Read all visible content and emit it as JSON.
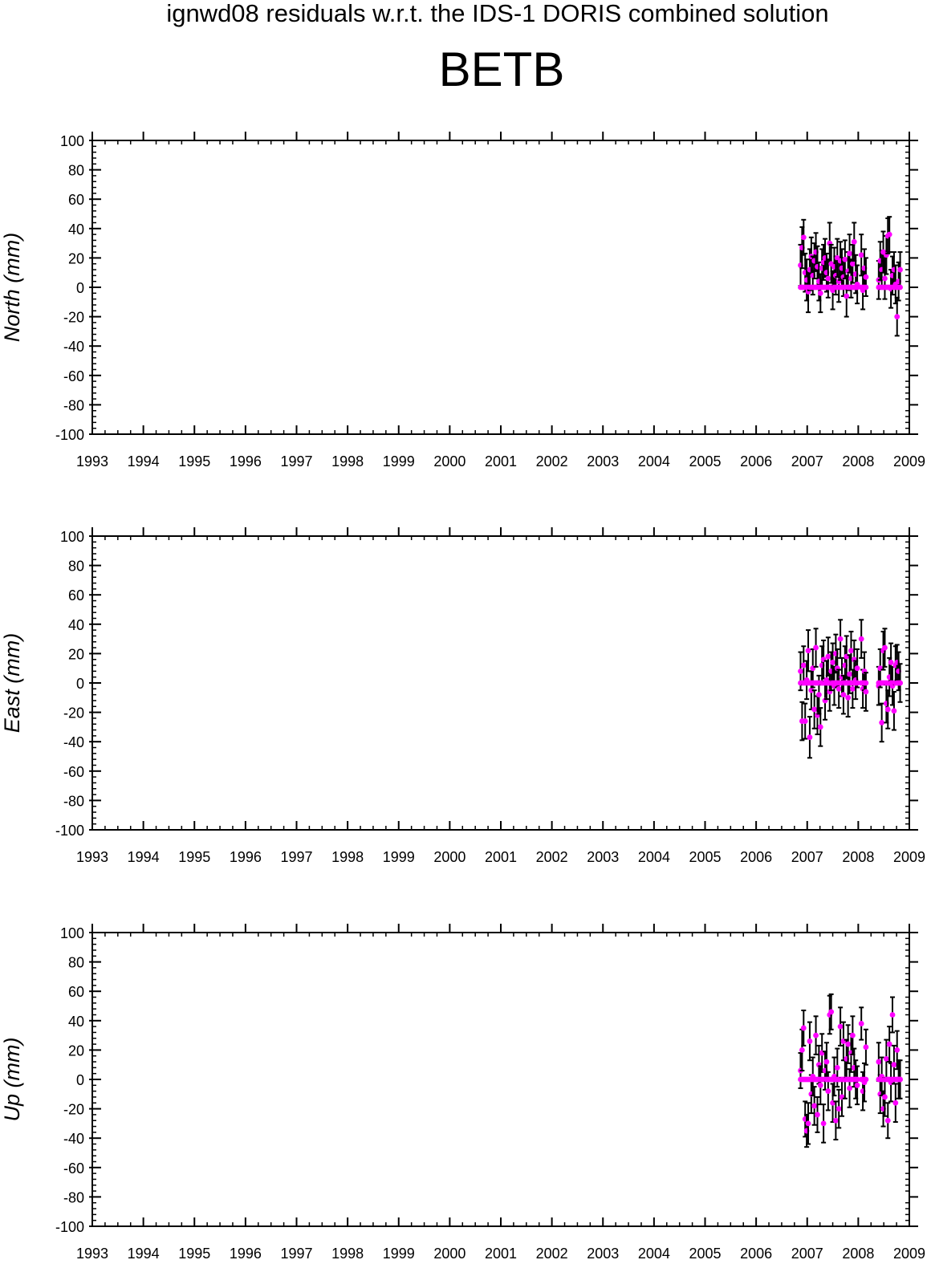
{
  "title": "ignwd08 residuals w.r.t. the IDS-1 DORIS combined solution",
  "subtitle": "BETB",
  "chart_data": [
    {
      "type": "scatter",
      "ylabel": "North (mm)",
      "xlim": [
        1993,
        2009
      ],
      "ylim": [
        -100,
        100
      ],
      "x_ticks": [
        1993,
        1994,
        1995,
        1996,
        1997,
        1998,
        1999,
        2000,
        2001,
        2002,
        2003,
        2004,
        2005,
        2006,
        2007,
        2008,
        2009
      ],
      "y_ticks": [
        100,
        80,
        60,
        40,
        20,
        0,
        -20,
        -40,
        -60,
        -80,
        -100
      ],
      "grid": false,
      "colors": {
        "points": "#ff00ff",
        "errorbars": "#000000"
      },
      "series": [
        {
          "points": [
            [
              2006.87,
              15,
              14
            ],
            [
              2006.9,
              27,
              14
            ],
            [
              2006.93,
              34,
              12
            ],
            [
              2006.96,
              10,
              13
            ],
            [
              2006.99,
              5,
              14
            ],
            [
              2007.02,
              -3,
              14
            ],
            [
              2007.05,
              12,
              14
            ],
            [
              2007.08,
              21,
              13
            ],
            [
              2007.11,
              8,
              13
            ],
            [
              2007.14,
              18,
              12
            ],
            [
              2007.17,
              24,
              13
            ],
            [
              2007.2,
              14,
              14
            ],
            [
              2007.23,
              4,
              13
            ],
            [
              2007.26,
              -4,
              13
            ],
            [
              2007.29,
              13,
              13
            ],
            [
              2007.32,
              17,
              12
            ],
            [
              2007.35,
              20,
              13
            ],
            [
              2007.38,
              10,
              13
            ],
            [
              2007.41,
              6,
              13
            ],
            [
              2007.44,
              30,
              14
            ],
            [
              2007.47,
              16,
              13
            ],
            [
              2007.5,
              -2,
              13
            ],
            [
              2007.53,
              14,
              13
            ],
            [
              2007.56,
              8,
              13
            ],
            [
              2007.59,
              20,
              13
            ],
            [
              2007.62,
              4,
              14
            ],
            [
              2007.65,
              18,
              13
            ],
            [
              2007.68,
              13,
              13
            ],
            [
              2007.71,
              7,
              13
            ],
            [
              2007.74,
              19,
              13
            ],
            [
              2007.77,
              -6,
              14
            ],
            [
              2007.8,
              11,
              13
            ],
            [
              2007.83,
              23,
              13
            ],
            [
              2007.86,
              6,
              13
            ],
            [
              2007.89,
              16,
              13
            ],
            [
              2007.92,
              31,
              13
            ],
            [
              2007.95,
              9,
              13
            ],
            [
              2007.98,
              2,
              13
            ],
            [
              2008.06,
              22,
              14
            ],
            [
              2008.09,
              -2,
              13
            ],
            [
              2008.12,
              13,
              13
            ],
            [
              2008.15,
              7,
              13
            ],
            [
              2008.4,
              5,
              13
            ],
            [
              2008.43,
              18,
              13
            ],
            [
              2008.46,
              12,
              13
            ],
            [
              2008.49,
              24,
              14
            ],
            [
              2008.52,
              6,
              14
            ],
            [
              2008.55,
              22,
              13
            ],
            [
              2008.58,
              35,
              12
            ],
            [
              2008.61,
              36,
              12
            ],
            [
              2008.64,
              -1,
              13
            ],
            [
              2008.67,
              8,
              13
            ],
            [
              2008.7,
              12,
              12
            ],
            [
              2008.73,
              2,
              13
            ],
            [
              2008.76,
              -20,
              13
            ],
            [
              2008.79,
              4,
              13
            ],
            [
              2008.82,
              12,
              12
            ]
          ]
        }
      ]
    },
    {
      "type": "scatter",
      "ylabel": "East (mm)",
      "xlim": [
        1993,
        2009
      ],
      "ylim": [
        -100,
        100
      ],
      "x_ticks": [
        1993,
        1994,
        1995,
        1996,
        1997,
        1998,
        1999,
        2000,
        2001,
        2002,
        2003,
        2004,
        2005,
        2006,
        2007,
        2008,
        2009
      ],
      "y_ticks": [
        100,
        80,
        60,
        40,
        20,
        0,
        -20,
        -40,
        -60,
        -80,
        -100
      ],
      "grid": false,
      "colors": {
        "points": "#ff00ff",
        "errorbars": "#000000"
      },
      "series": [
        {
          "points": [
            [
              2006.87,
              8,
              13
            ],
            [
              2006.9,
              -26,
              13
            ],
            [
              2006.93,
              12,
              13
            ],
            [
              2006.96,
              -26,
              12
            ],
            [
              2006.99,
              2,
              13
            ],
            [
              2007.02,
              22,
              14
            ],
            [
              2007.05,
              -37,
              14
            ],
            [
              2007.08,
              -5,
              13
            ],
            [
              2007.11,
              10,
              13
            ],
            [
              2007.14,
              -18,
              13
            ],
            [
              2007.17,
              24,
              13
            ],
            [
              2007.2,
              -22,
              13
            ],
            [
              2007.23,
              -8,
              13
            ],
            [
              2007.26,
              -30,
              13
            ],
            [
              2007.29,
              12,
              13
            ],
            [
              2007.32,
              16,
              13
            ],
            [
              2007.35,
              -12,
              13
            ],
            [
              2007.38,
              2,
              13
            ],
            [
              2007.41,
              18,
              13
            ],
            [
              2007.44,
              -6,
              13
            ],
            [
              2007.47,
              8,
              13
            ],
            [
              2007.5,
              14,
              13
            ],
            [
              2007.53,
              -2,
              13
            ],
            [
              2007.56,
              20,
              13
            ],
            [
              2007.59,
              10,
              13
            ],
            [
              2007.62,
              -4,
              13
            ],
            [
              2007.65,
              30,
              13
            ],
            [
              2007.68,
              4,
              13
            ],
            [
              2007.71,
              -8,
              13
            ],
            [
              2007.74,
              12,
              13
            ],
            [
              2007.77,
              18,
              14
            ],
            [
              2007.8,
              -10,
              13
            ],
            [
              2007.83,
              6,
              13
            ],
            [
              2007.86,
              22,
              13
            ],
            [
              2007.89,
              -4,
              13
            ],
            [
              2007.92,
              16,
              13
            ],
            [
              2007.95,
              2,
              13
            ],
            [
              2007.98,
              10,
              13
            ],
            [
              2008.06,
              30,
              13
            ],
            [
              2008.09,
              -4,
              13
            ],
            [
              2008.12,
              8,
              13
            ],
            [
              2008.15,
              -6,
              13
            ],
            [
              2008.4,
              -2,
              13
            ],
            [
              2008.43,
              10,
              13
            ],
            [
              2008.46,
              -27,
              13
            ],
            [
              2008.49,
              22,
              13
            ],
            [
              2008.52,
              24,
              13
            ],
            [
              2008.55,
              -14,
              13
            ],
            [
              2008.58,
              -18,
              13
            ],
            [
              2008.61,
              4,
              13
            ],
            [
              2008.64,
              14,
              13
            ],
            [
              2008.67,
              -2,
              13
            ],
            [
              2008.7,
              -19,
              13
            ],
            [
              2008.73,
              12,
              13
            ],
            [
              2008.76,
              14,
              12
            ],
            [
              2008.79,
              8,
              13
            ],
            [
              2008.82,
              0,
              13
            ]
          ]
        }
      ]
    },
    {
      "type": "scatter",
      "ylabel": "Up (mm)",
      "xlim": [
        1993,
        2009
      ],
      "ylim": [
        -100,
        100
      ],
      "x_ticks": [
        1993,
        1994,
        1995,
        1996,
        1997,
        1998,
        1999,
        2000,
        2001,
        2002,
        2003,
        2004,
        2005,
        2006,
        2007,
        2008,
        2009
      ],
      "y_ticks": [
        100,
        80,
        60,
        40,
        20,
        0,
        -20,
        -40,
        -60,
        -80,
        -100
      ],
      "grid": false,
      "colors": {
        "points": "#ff00ff",
        "errorbars": "#000000"
      },
      "series": [
        {
          "points": [
            [
              2006.87,
              6,
              12
            ],
            [
              2006.9,
              20,
              14
            ],
            [
              2006.93,
              35,
              12
            ],
            [
              2006.96,
              -27,
              12
            ],
            [
              2006.99,
              -35,
              11
            ],
            [
              2007.02,
              -30,
              14
            ],
            [
              2007.05,
              26,
              13
            ],
            [
              2007.08,
              -10,
              13
            ],
            [
              2007.11,
              2,
              13
            ],
            [
              2007.14,
              -18,
              13
            ],
            [
              2007.17,
              30,
              13
            ],
            [
              2007.2,
              -24,
              12
            ],
            [
              2007.23,
              10,
              13
            ],
            [
              2007.26,
              -4,
              13
            ],
            [
              2007.29,
              18,
              13
            ],
            [
              2007.32,
              -30,
              13
            ],
            [
              2007.35,
              6,
              13
            ],
            [
              2007.38,
              12,
              13
            ],
            [
              2007.41,
              -8,
              13
            ],
            [
              2007.44,
              44,
              13
            ],
            [
              2007.47,
              46,
              12
            ],
            [
              2007.5,
              -16,
              13
            ],
            [
              2007.53,
              2,
              13
            ],
            [
              2007.56,
              -28,
              13
            ],
            [
              2007.59,
              8,
              13
            ],
            [
              2007.62,
              -20,
              13
            ],
            [
              2007.65,
              36,
              13
            ],
            [
              2007.68,
              -12,
              13
            ],
            [
              2007.71,
              26,
              13
            ],
            [
              2007.74,
              0,
              13
            ],
            [
              2007.77,
              14,
              13
            ],
            [
              2007.8,
              24,
              13
            ],
            [
              2007.83,
              -6,
              13
            ],
            [
              2007.86,
              18,
              13
            ],
            [
              2007.89,
              30,
              13
            ],
            [
              2007.92,
              8,
              13
            ],
            [
              2007.95,
              0,
              13
            ],
            [
              2007.98,
              -4,
              13
            ],
            [
              2008.06,
              38,
              11
            ],
            [
              2008.09,
              -8,
              13
            ],
            [
              2008.12,
              -2,
              13
            ],
            [
              2008.15,
              22,
              12
            ],
            [
              2008.4,
              12,
              13
            ],
            [
              2008.43,
              -10,
              13
            ],
            [
              2008.46,
              2,
              13
            ],
            [
              2008.49,
              -20,
              12
            ],
            [
              2008.52,
              -12,
              13
            ],
            [
              2008.55,
              14,
              13
            ],
            [
              2008.58,
              -28,
              12
            ],
            [
              2008.61,
              24,
              12
            ],
            [
              2008.64,
              -2,
              13
            ],
            [
              2008.67,
              44,
              12
            ],
            [
              2008.7,
              10,
              13
            ],
            [
              2008.73,
              -16,
              13
            ],
            [
              2008.76,
              20,
              13
            ],
            [
              2008.79,
              0,
              13
            ],
            [
              2008.82,
              0,
              13
            ]
          ]
        }
      ]
    }
  ]
}
